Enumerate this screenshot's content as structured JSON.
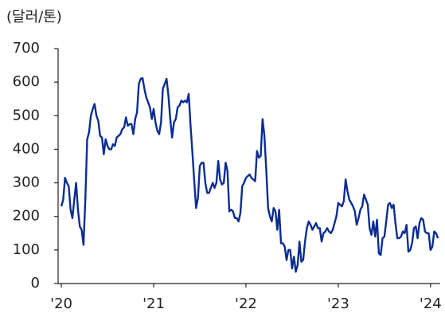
{
  "chart_data": {
    "type": "line",
    "unit_label": "(달러/톤)",
    "x": [
      2020,
      2020.02,
      2020.04,
      2020.06,
      2020.08,
      2020.1,
      2020.12,
      2020.14,
      2020.16,
      2020.18,
      2020.2,
      2020.22,
      2020.24,
      2020.26,
      2020.28,
      2020.3,
      2020.32,
      2020.34,
      2020.36,
      2020.38,
      2020.4,
      2020.42,
      2020.44,
      2020.46,
      2020.48,
      2020.5,
      2020.52,
      2020.54,
      2020.56,
      2020.58,
      2020.6,
      2020.62,
      2020.64,
      2020.66,
      2020.68,
      2020.7,
      2020.72,
      2020.74,
      2020.76,
      2020.78,
      2020.8,
      2020.82,
      2020.84,
      2020.86,
      2020.88,
      2020.9,
      2020.92,
      2020.94,
      2020.96,
      2020.98,
      2021,
      2021.02,
      2021.04,
      2021.06,
      2021.08,
      2021.1,
      2021.12,
      2021.14,
      2021.16,
      2021.18,
      2021.2,
      2021.22,
      2021.24,
      2021.26,
      2021.28,
      2021.3,
      2021.32,
      2021.34,
      2021.36,
      2021.38,
      2021.4,
      2021.42,
      2021.44,
      2021.46,
      2021.48,
      2021.5,
      2021.52,
      2021.54,
      2021.56,
      2021.58,
      2021.6,
      2021.62,
      2021.64,
      2021.66,
      2021.68,
      2021.7,
      2021.72,
      2021.74,
      2021.76,
      2021.78,
      2021.8,
      2021.82,
      2021.84,
      2021.86,
      2021.88,
      2021.9,
      2021.92,
      2021.94,
      2021.96,
      2021.98,
      2022,
      2022.02,
      2022.04,
      2022.06,
      2022.08,
      2022.1,
      2022.12,
      2022.14,
      2022.16,
      2022.18,
      2022.2,
      2022.22,
      2022.24,
      2022.26,
      2022.28,
      2022.3,
      2022.32,
      2022.34,
      2022.36,
      2022.38,
      2022.4,
      2022.42,
      2022.44,
      2022.46,
      2022.48,
      2022.5,
      2022.52,
      2022.54,
      2022.56,
      2022.58,
      2022.6,
      2022.62,
      2022.64,
      2022.66,
      2022.68,
      2022.7,
      2022.72,
      2022.74,
      2022.76,
      2022.78,
      2022.8,
      2022.82,
      2022.84,
      2022.86,
      2022.88,
      2022.9,
      2022.92,
      2022.94,
      2022.96,
      2022.98,
      2023,
      2023.02,
      2023.04,
      2023.06,
      2023.08,
      2023.1,
      2023.12,
      2023.14,
      2023.16,
      2023.18,
      2023.2,
      2023.22,
      2023.24,
      2023.26,
      2023.28,
      2023.3,
      2023.32,
      2023.34,
      2023.36,
      2023.38,
      2023.4,
      2023.42,
      2023.44,
      2023.46,
      2023.48,
      2023.5,
      2023.52,
      2023.54,
      2023.56,
      2023.58,
      2023.6,
      2023.62,
      2023.64,
      2023.66,
      2023.68,
      2023.7,
      2023.72,
      2023.74,
      2023.76,
      2023.78,
      2023.8,
      2023.82,
      2023.84,
      2023.86,
      2023.88,
      2023.9,
      2023.92,
      2023.94,
      2023.96,
      2023.98,
      2024,
      2024.02,
      2024.04,
      2024.06,
      2024.08
    ],
    "series": [
      {
        "color": "#0b2d92",
        "values": [
          230,
          250,
          315,
          300,
          290,
          220,
          195,
          250,
          300,
          220,
          170,
          160,
          115,
          250,
          430,
          450,
          500,
          520,
          535,
          500,
          485,
          440,
          435,
          385,
          430,
          410,
          400,
          400,
          415,
          410,
          435,
          440,
          445,
          460,
          465,
          495,
          470,
          475,
          475,
          445,
          490,
          510,
          595,
          610,
          612,
          580,
          555,
          540,
          525,
          490,
          520,
          480,
          455,
          445,
          480,
          580,
          595,
          610,
          560,
          490,
          435,
          480,
          490,
          525,
          530,
          545,
          540,
          545,
          540,
          565,
          470,
          390,
          305,
          225,
          255,
          350,
          360,
          360,
          300,
          270,
          270,
          285,
          300,
          285,
          300,
          365,
          310,
          295,
          300,
          360,
          335,
          215,
          220,
          215,
          195,
          195,
          185,
          210,
          290,
          300,
          315,
          320,
          325,
          315,
          310,
          305,
          395,
          375,
          380,
          490,
          440,
          340,
          225,
          200,
          185,
          225,
          215,
          160,
          220,
          120,
          120,
          110,
          70,
          100,
          100,
          45,
          80,
          35,
          55,
          125,
          65,
          70,
          125,
          165,
          185,
          175,
          160,
          170,
          180,
          165,
          165,
          125,
          150,
          155,
          165,
          155,
          150,
          160,
          180,
          200,
          240,
          235,
          230,
          245,
          310,
          275,
          250,
          240,
          230,
          215,
          175,
          195,
          220,
          230,
          265,
          250,
          235,
          165,
          145,
          185,
          140,
          190,
          90,
          85,
          135,
          140,
          185,
          235,
          240,
          225,
          235,
          180,
          135,
          135,
          140,
          155,
          150,
          175,
          95,
          100,
          120,
          165,
          170,
          135,
          180,
          195,
          190,
          155,
          150,
          150,
          100,
          110,
          155,
          150,
          135
        ]
      }
    ],
    "xlim": [
      2019.965,
      2024.105
    ],
    "xticks": [
      {
        "value": 2020,
        "label": "'20"
      },
      {
        "value": 2021,
        "label": "'21"
      },
      {
        "value": 2022,
        "label": "'22"
      },
      {
        "value": 2023,
        "label": "'23"
      },
      {
        "value": 2024,
        "label": "'24"
      }
    ],
    "ylim": [
      0,
      700
    ],
    "yticks": [
      0,
      100,
      200,
      300,
      400,
      500,
      600,
      700
    ],
    "grid": false
  }
}
